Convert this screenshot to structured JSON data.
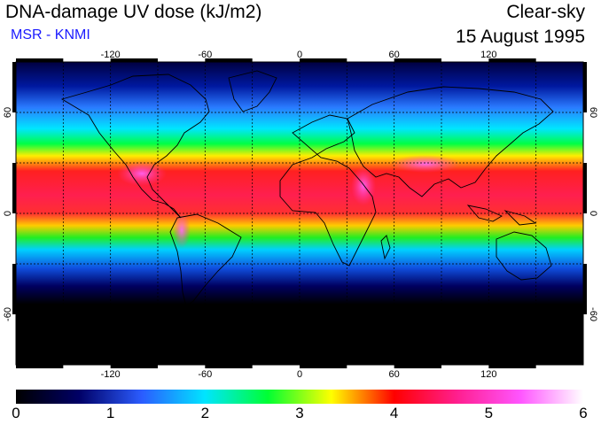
{
  "header": {
    "title": "DNA-damage UV dose (kJ/m2)",
    "source": "MSR - KNMI",
    "condition": "Clear-sky",
    "date": "15 August 1995"
  },
  "map": {
    "projection": "equirectangular",
    "lon_range": [
      -180,
      180
    ],
    "lat_range": [
      -90,
      90
    ],
    "lon_ticks": [
      -120,
      -60,
      0,
      60,
      120
    ],
    "lat_ticks": [
      -60,
      0,
      60
    ],
    "grid": "dashed, every 30 degrees",
    "colors": {
      "background": "#000000",
      "coastline": "#000000",
      "frame": "#000000"
    }
  },
  "colorbar": {
    "min": 0,
    "max": 6,
    "tick_labels": [
      "0",
      "1",
      "2",
      "3",
      "4",
      "5",
      "6"
    ],
    "stops": [
      "#000000",
      "#000066",
      "#2b5cff",
      "#00e5ff",
      "#00ff33",
      "#ffff00",
      "#ff0000",
      "#ff1f8f",
      "#ff55ff",
      "#ffffff"
    ]
  }
}
